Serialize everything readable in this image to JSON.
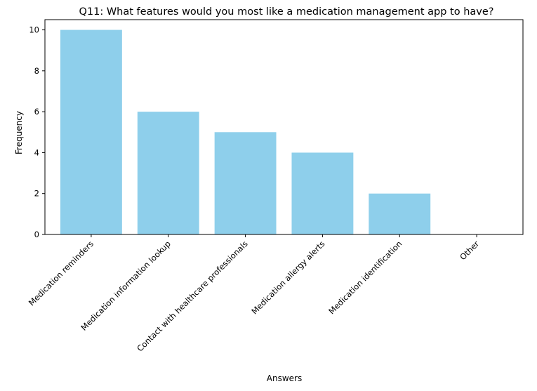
{
  "chart_data": {
    "type": "bar",
    "title": "Q11: What features would you most like a medication management app to have?",
    "xlabel": "Answers",
    "ylabel": "Frequency",
    "categories": [
      "Medication reminders",
      "Medication information lookup",
      "Contact with healthcare professionals",
      "Medication allergy alerts",
      "Medication identification",
      "Other"
    ],
    "values": [
      10,
      6,
      5,
      4,
      2,
      0
    ],
    "ylim": [
      0,
      10.5
    ],
    "yticks": [
      0,
      2,
      4,
      6,
      8,
      10
    ],
    "bar_color": "#8ecfeb",
    "grid": false,
    "legend": "none"
  }
}
